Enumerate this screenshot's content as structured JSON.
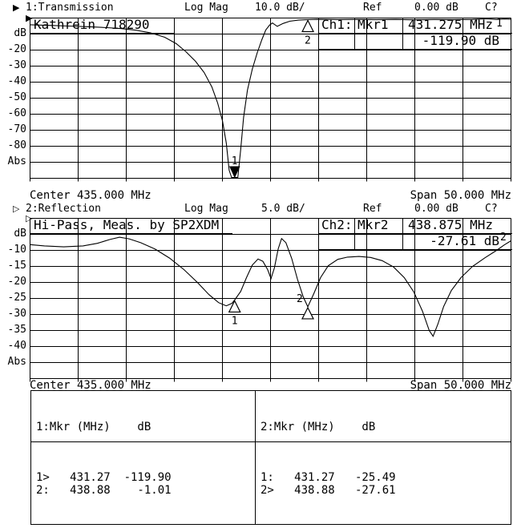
{
  "channel1_header": {
    "arrow": "▶",
    "title": "1:Transmission",
    "format": "Log Mag",
    "scale": "10.0 dB/",
    "ref_label": "Ref",
    "ref_value": "0.00 dB",
    "cal_status": "C?"
  },
  "channel2_header": {
    "arrow": "▷",
    "title": "2:Reflection",
    "format": "Log Mag",
    "scale": "5.0 dB/",
    "ref_label": "Ref",
    "ref_value": "0.00 dB",
    "cal_status": "C?"
  },
  "center_span": {
    "center": "Center 435.000 MHz",
    "span": "Span 50.000 MHz"
  },
  "chart1": {
    "annotation": "Kathrein 718290",
    "readout": {
      "channel": "Ch1:",
      "marker": "Mkr1",
      "frequency": "431.275 MHz",
      "value": "-119.90 dB"
    },
    "trace_number": "1",
    "ref_arrow": "▶",
    "y_axis_labels": [
      {
        "text": "dB",
        "db": -10
      },
      {
        "text": "-20",
        "db": -20
      },
      {
        "text": "-30",
        "db": -30
      },
      {
        "text": "-40",
        "db": -40
      },
      {
        "text": "-50",
        "db": -50
      },
      {
        "text": "-60",
        "db": -60
      },
      {
        "text": "-70",
        "db": -70
      },
      {
        "text": "-80",
        "db": -80
      },
      {
        "text": "Abs",
        "db": -90
      }
    ]
  },
  "chart2": {
    "annotation": "Hi-Pass, Meas. by SP2XDM",
    "readout": {
      "channel": "Ch2:",
      "marker": "Mkr2",
      "frequency": "438.875 MHz",
      "value": "-27.61 dB"
    },
    "trace_number": "2",
    "ref_arrow": "▷",
    "y_axis_labels": [
      {
        "text": "dB",
        "db": -5
      },
      {
        "text": "-10",
        "db": -10
      },
      {
        "text": "-15",
        "db": -15
      },
      {
        "text": "-20",
        "db": -20
      },
      {
        "text": "-25",
        "db": -25
      },
      {
        "text": "-30",
        "db": -30
      },
      {
        "text": "-35",
        "db": -35
      },
      {
        "text": "-40",
        "db": -40
      },
      {
        "text": "Abs",
        "db": -45
      }
    ]
  },
  "marker_table": {
    "col1": {
      "header": "1:Mkr (MHz)    dB",
      "rows": [
        "1>   431.27  -119.90",
        "2:   438.88    -1.01"
      ]
    },
    "col2": {
      "header": "2:Mkr (MHz)    dB",
      "rows": [
        "1:   431.27   -25.49",
        "2>   438.88   -27.61"
      ]
    }
  },
  "chart_data": [
    {
      "type": "line",
      "title": "Ch1 Transmission, Log Mag 10.0 dB/div, Ref 0.00 dB",
      "x_range_mhz": [
        410,
        460
      ],
      "y_range_db": [
        -100,
        0
      ],
      "db_per_div": 10,
      "grid_divs": [
        10,
        10
      ],
      "trace": [
        [
          410,
          -4.2
        ],
        [
          412,
          -4.6
        ],
        [
          414,
          -5.0
        ],
        [
          416,
          -5.4
        ],
        [
          418,
          -6.0
        ],
        [
          419.5,
          -6.6
        ],
        [
          421,
          -7.6
        ],
        [
          422.5,
          -9.2
        ],
        [
          424,
          -12
        ],
        [
          425.2,
          -16
        ],
        [
          426.2,
          -21
        ],
        [
          427.2,
          -27
        ],
        [
          428.1,
          -34
        ],
        [
          428.9,
          -43
        ],
        [
          429.5,
          -53
        ],
        [
          430.0,
          -64
        ],
        [
          430.4,
          -78
        ],
        [
          430.7,
          -95
        ],
        [
          430.95,
          -110
        ],
        [
          431.27,
          -119.9
        ],
        [
          431.6,
          -105
        ],
        [
          431.9,
          -82
        ],
        [
          432.2,
          -62
        ],
        [
          432.6,
          -45
        ],
        [
          433.1,
          -32
        ],
        [
          433.6,
          -22
        ],
        [
          434.1,
          -13.5
        ],
        [
          434.5,
          -7.5
        ],
        [
          434.9,
          -4.4
        ],
        [
          435.2,
          -3.1
        ],
        [
          435.7,
          -5.2
        ],
        [
          436.3,
          -3.4
        ],
        [
          437,
          -2.0
        ],
        [
          437.9,
          -1.3
        ],
        [
          438.88,
          -1.01
        ],
        [
          440,
          -0.85
        ],
        [
          442,
          -1.0
        ],
        [
          444,
          -0.9
        ],
        [
          446,
          -1.05
        ],
        [
          448,
          -0.9
        ],
        [
          450,
          -1.1
        ],
        [
          452,
          -0.95
        ],
        [
          454,
          -1.05
        ],
        [
          456,
          -0.9
        ],
        [
          457.5,
          -0.45
        ],
        [
          458.5,
          -0.9
        ],
        [
          459.3,
          -0.6
        ],
        [
          460,
          -0.75
        ]
      ],
      "markers": [
        {
          "label": "1",
          "mhz": 431.275,
          "db": -119.9,
          "display": "offscale_down"
        },
        {
          "label": "2",
          "mhz": 438.88,
          "db": -1.01,
          "display": "triangle_below"
        }
      ]
    },
    {
      "type": "line",
      "title": "Ch2 Reflection, Log Mag 5.0 dB/div, Ref 0.00 dB",
      "x_range_mhz": [
        410,
        460
      ],
      "y_range_db": [
        -50,
        0
      ],
      "db_per_div": 5,
      "grid_divs": [
        10,
        10
      ],
      "trace": [
        [
          410,
          -8.2
        ],
        [
          411.5,
          -8.6
        ],
        [
          413.5,
          -8.9
        ],
        [
          415.5,
          -8.6
        ],
        [
          417,
          -7.8
        ],
        [
          418.3,
          -6.6
        ],
        [
          419.3,
          -5.9
        ],
        [
          420.3,
          -6.4
        ],
        [
          421.5,
          -7.6
        ],
        [
          423,
          -9.6
        ],
        [
          424.5,
          -12.4
        ],
        [
          426,
          -16
        ],
        [
          427.4,
          -20
        ],
        [
          428.6,
          -23.8
        ],
        [
          429.6,
          -26.3
        ],
        [
          430.4,
          -27.3
        ],
        [
          431,
          -26.5
        ],
        [
          431.27,
          -25.49
        ],
        [
          431.9,
          -22.8
        ],
        [
          432.5,
          -18.5
        ],
        [
          433.1,
          -14.6
        ],
        [
          433.7,
          -12.7
        ],
        [
          434.2,
          -13.4
        ],
        [
          434.7,
          -16
        ],
        [
          435.05,
          -18.8
        ],
        [
          435.4,
          -15.5
        ],
        [
          435.8,
          -9.5
        ],
        [
          436.15,
          -6.3
        ],
        [
          436.6,
          -7.6
        ],
        [
          437.2,
          -12.5
        ],
        [
          437.8,
          -19
        ],
        [
          438.4,
          -24.5
        ],
        [
          438.875,
          -27.61
        ],
        [
          439.5,
          -23.5
        ],
        [
          440.2,
          -18.5
        ],
        [
          441,
          -14.8
        ],
        [
          442,
          -12.8
        ],
        [
          443,
          -12.1
        ],
        [
          444.2,
          -11.9
        ],
        [
          445.4,
          -12.2
        ],
        [
          446.6,
          -13.2
        ],
        [
          447.8,
          -15.2
        ],
        [
          448.9,
          -18.5
        ],
        [
          449.9,
          -23
        ],
        [
          450.8,
          -29
        ],
        [
          451.5,
          -35
        ],
        [
          451.9,
          -36.8
        ],
        [
          452.4,
          -33
        ],
        [
          453,
          -27.5
        ],
        [
          453.8,
          -22.5
        ],
        [
          454.8,
          -18.5
        ],
        [
          456,
          -15
        ],
        [
          457.3,
          -12.3
        ],
        [
          458.5,
          -10
        ],
        [
          459.3,
          -8.3
        ],
        [
          460,
          -7
        ]
      ],
      "markers": [
        {
          "label": "1",
          "mhz": 431.27,
          "db": -25.49,
          "display": "triangle_below"
        },
        {
          "label": "2",
          "mhz": 438.875,
          "db": -27.61,
          "display": "triangle_label_above"
        }
      ]
    }
  ]
}
